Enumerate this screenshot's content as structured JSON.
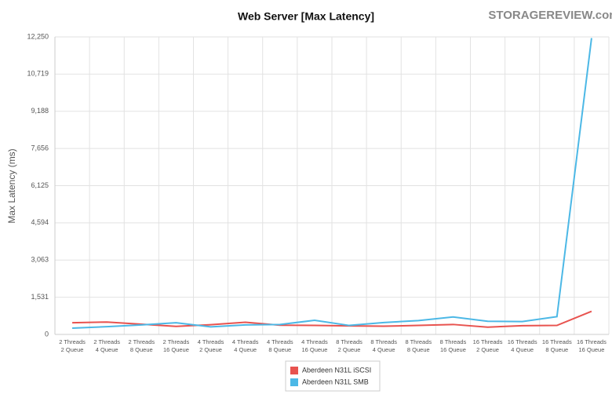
{
  "logo": "STORAGEREVIEW.com",
  "chart_data": {
    "type": "line",
    "title": "Web Server [Max Latency]",
    "y_label": "Max Latency (ms)",
    "categories": [
      [
        "2 Threads",
        "2 Queue"
      ],
      [
        "2 Threads",
        "4 Queue"
      ],
      [
        "2 Threads",
        "8 Queue"
      ],
      [
        "2 Threads",
        "16 Queue"
      ],
      [
        "4 Threads",
        "2 Queue"
      ],
      [
        "4 Threads",
        "4 Queue"
      ],
      [
        "4 Threads",
        "8 Queue"
      ],
      [
        "4 Threads",
        "16 Queue"
      ],
      [
        "8 Threads",
        "2 Queue"
      ],
      [
        "8 Threads",
        "4 Queue"
      ],
      [
        "8 Threads",
        "8 Queue"
      ],
      [
        "8 Threads",
        "16 Queue"
      ],
      [
        "16 Threads",
        "2 Queue"
      ],
      [
        "16 Threads",
        "4 Queue"
      ],
      [
        "16 Threads",
        "8 Queue"
      ],
      [
        "16 Threads",
        "16 Queue"
      ]
    ],
    "series": [
      {
        "name": "Aberdeen N31L iSCSI",
        "color": "#e8534f",
        "values": [
          480,
          510,
          420,
          330,
          400,
          500,
          380,
          370,
          350,
          340,
          370,
          410,
          300,
          360,
          370,
          950
        ]
      },
      {
        "name": "Aberdeen N31L SMB",
        "color": "#4cb8e6",
        "values": [
          260,
          320,
          390,
          480,
          310,
          390,
          410,
          580,
          370,
          490,
          570,
          720,
          540,
          530,
          730,
          12200
        ]
      }
    ],
    "ylim": [
      0,
      12250
    ],
    "yticks": [
      0,
      {
        "value": 1531,
        "label": "1,531"
      },
      {
        "value": 3063,
        "label": "3,063"
      },
      {
        "value": 4594,
        "label": "4,594"
      },
      {
        "value": 6125,
        "label": "6,125"
      },
      {
        "value": 7656,
        "label": "7,656"
      },
      {
        "value": 9188,
        "label": "9,188"
      },
      {
        "value": 10719,
        "label": "10,719"
      },
      {
        "value": 12250,
        "label": "12,250"
      }
    ],
    "grid": true
  }
}
